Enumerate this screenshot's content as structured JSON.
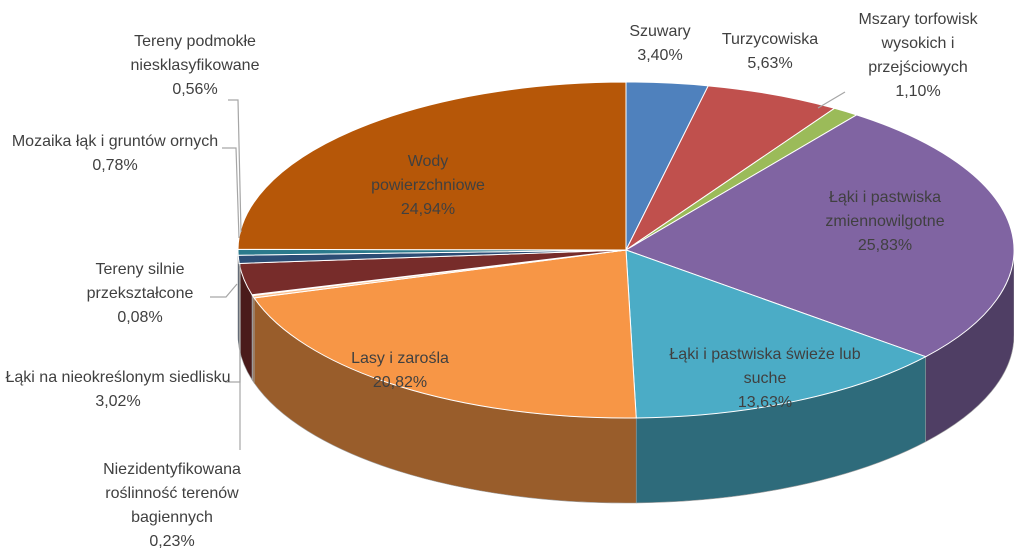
{
  "chart_data": {
    "type": "pie",
    "categories": [
      "Szuwary",
      "Turzycowiska",
      "Mszary torfowisk wysokich i przejściowych",
      "Łąki i pastwiska zmiennowilgotne",
      "Łąki i pastwiska świeże lub suche",
      "Lasy i zarośla",
      "Niezidentyfikowana roślinność terenów bagiennych",
      "Tereny silnie przekształcone",
      "Łąki na nieokreślonym siedlisku",
      "Mozaika łąk i gruntów ornych",
      "Tereny podmokłe niesklasyfikowane",
      "Wody powierzchniowe"
    ],
    "values": [
      3.4,
      5.63,
      1.1,
      25.83,
      13.63,
      20.82,
      0.23,
      0.08,
      3.02,
      0.78,
      0.56,
      24.94
    ],
    "value_labels": [
      "3,40%",
      "5,63%",
      "1,10%",
      "25,83%",
      "13,63%",
      "20,82%",
      "0,23%",
      "0,08%",
      "3,02%",
      "0,78%",
      "0,56%",
      "24,94%"
    ],
    "colors": [
      "#4f81bd",
      "#c0504d",
      "#9bbb59",
      "#8064a2",
      "#4bacc6",
      "#f79646",
      "#fac090",
      "#a5a5a5",
      "#772c2a",
      "#2c4d75",
      "#2b7a8c",
      "#b65708"
    ]
  }
}
